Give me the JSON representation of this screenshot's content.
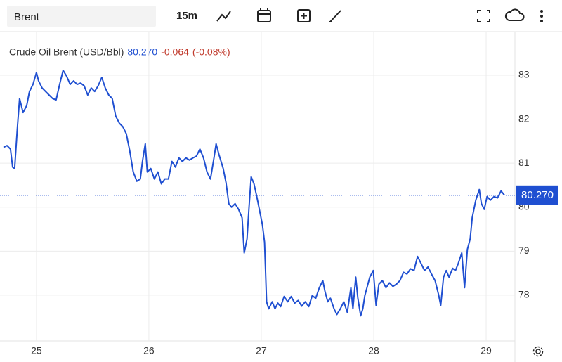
{
  "search": "Brent",
  "interval": "15m",
  "chart_data": {
    "type": "line",
    "title": "Crude Oil Brent (USD/Bbl)",
    "last_price": {
      "value": 80.27,
      "label": "80.270"
    },
    "change": -0.064,
    "change_pct": {
      "value": -0.08,
      "label": "(-0.08%)"
    },
    "grid": true,
    "xlim": [
      24.707,
      29.256
    ],
    "ylim": [
      76.96,
      83.99
    ],
    "xticks": [
      25,
      26,
      27,
      28,
      29
    ],
    "yticks": [
      78,
      79,
      80,
      81,
      82,
      83
    ],
    "series": [
      {
        "color": "#1f4fd1",
        "x": [
          24.707,
          24.738,
          24.769,
          24.788,
          24.806,
          24.831,
          24.85,
          24.881,
          24.913,
          24.938,
          24.969,
          25.0,
          25.019,
          25.05,
          25.081,
          25.112,
          25.144,
          25.175,
          25.206,
          25.237,
          25.268,
          25.3,
          25.331,
          25.362,
          25.393,
          25.424,
          25.456,
          25.487,
          25.518,
          25.549,
          25.581,
          25.612,
          25.643,
          25.674,
          25.705,
          25.737,
          25.768,
          25.799,
          25.83,
          25.861,
          25.893,
          25.924,
          25.943,
          25.968,
          25.986,
          26.017,
          26.049,
          26.08,
          26.111,
          26.142,
          26.174,
          26.205,
          26.236,
          26.267,
          26.298,
          26.33,
          26.361,
          26.392,
          26.423,
          26.454,
          26.486,
          26.517,
          26.548,
          26.579,
          26.598,
          26.623,
          26.661,
          26.686,
          26.711,
          26.735,
          26.767,
          26.798,
          26.829,
          26.848,
          26.873,
          26.891,
          26.91,
          26.935,
          26.96,
          26.985,
          27.01,
          27.029,
          27.047,
          27.066,
          27.097,
          27.122,
          27.147,
          27.172,
          27.203,
          27.235,
          27.266,
          27.297,
          27.328,
          27.36,
          27.391,
          27.422,
          27.453,
          27.484,
          27.516,
          27.547,
          27.566,
          27.591,
          27.615,
          27.647,
          27.672,
          27.703,
          27.734,
          27.765,
          27.797,
          27.815,
          27.84,
          27.859,
          27.884,
          27.903,
          27.921,
          27.94,
          27.965,
          27.996,
          28.021,
          28.046,
          28.077,
          28.109,
          28.14,
          28.171,
          28.202,
          28.233,
          28.265,
          28.296,
          28.327,
          28.358,
          28.39,
          28.421,
          28.452,
          28.483,
          28.514,
          28.546,
          28.577,
          28.596,
          28.621,
          28.645,
          28.67,
          28.702,
          28.727,
          28.752,
          28.783,
          28.808,
          28.833,
          28.858,
          28.876,
          28.908,
          28.939,
          28.958,
          28.983,
          29.008,
          29.039,
          29.07,
          29.101,
          29.133,
          29.164
        ],
        "values": [
          81.36,
          81.4,
          81.32,
          80.91,
          80.88,
          81.83,
          82.47,
          82.15,
          82.31,
          82.63,
          82.79,
          83.06,
          82.87,
          82.71,
          82.63,
          82.55,
          82.47,
          82.44,
          82.79,
          83.11,
          82.98,
          82.79,
          82.87,
          82.79,
          82.82,
          82.76,
          82.55,
          82.71,
          82.63,
          82.76,
          82.95,
          82.71,
          82.55,
          82.47,
          82.07,
          81.91,
          81.83,
          81.67,
          81.28,
          80.8,
          80.59,
          80.64,
          81.04,
          81.44,
          80.8,
          80.88,
          80.64,
          80.8,
          80.53,
          80.64,
          80.64,
          81.04,
          80.91,
          81.12,
          81.04,
          81.12,
          81.07,
          81.12,
          81.16,
          81.32,
          81.12,
          80.8,
          80.64,
          81.12,
          81.44,
          81.2,
          80.88,
          80.56,
          80.08,
          80.0,
          80.08,
          79.95,
          79.76,
          78.96,
          79.28,
          80.0,
          80.69,
          80.53,
          80.24,
          79.92,
          79.6,
          79.2,
          77.85,
          77.69,
          77.85,
          77.69,
          77.82,
          77.74,
          77.97,
          77.85,
          77.97,
          77.82,
          77.88,
          77.75,
          77.85,
          77.74,
          77.99,
          77.93,
          78.17,
          78.33,
          78.09,
          77.85,
          77.93,
          77.69,
          77.56,
          77.69,
          77.85,
          77.61,
          78.17,
          77.69,
          78.41,
          77.93,
          77.53,
          77.69,
          77.99,
          78.17,
          78.41,
          78.56,
          77.77,
          78.25,
          78.33,
          78.17,
          78.28,
          78.2,
          78.25,
          78.33,
          78.52,
          78.48,
          78.6,
          78.56,
          78.88,
          78.72,
          78.56,
          78.64,
          78.48,
          78.33,
          78.01,
          77.77,
          78.41,
          78.56,
          78.41,
          78.61,
          78.56,
          78.72,
          78.96,
          78.17,
          79.04,
          79.28,
          79.76,
          80.16,
          80.4,
          80.08,
          79.95,
          80.24,
          80.16,
          80.24,
          80.21,
          80.37,
          80.27
        ]
      }
    ]
  }
}
